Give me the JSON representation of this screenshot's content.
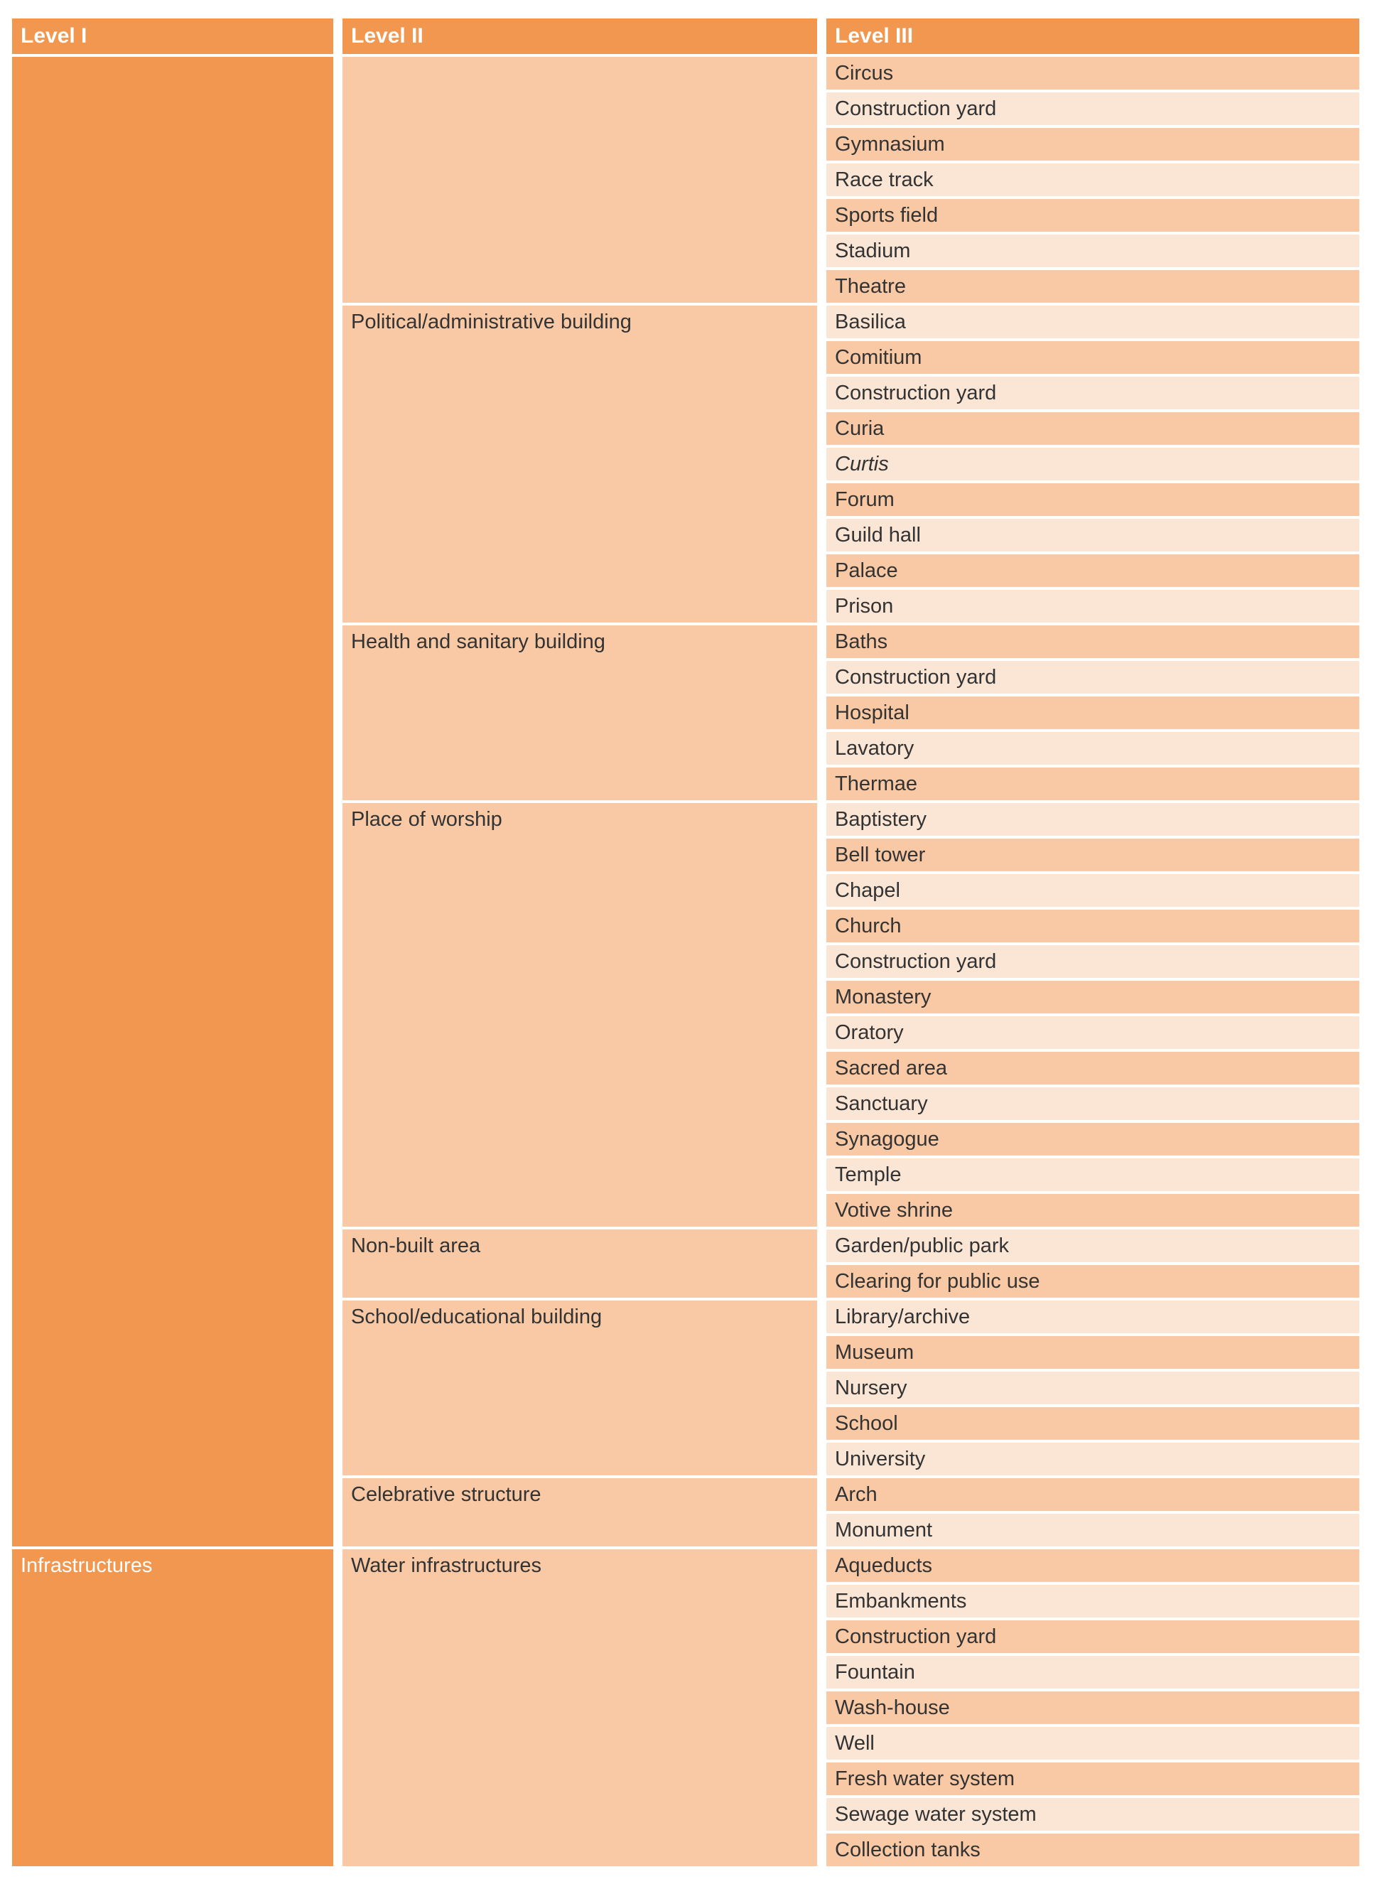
{
  "headers": [
    "Level I",
    "Level II",
    "Level III"
  ],
  "colors": {
    "accent": "#F1974F",
    "tint_medium": "#F8C9A4",
    "tint_light": "#FBE5D4",
    "header_text": "#FFFFFF",
    "body_text": "#333333",
    "background": "#FFFFFF"
  },
  "groups": [
    {
      "level1": "",
      "level2": [
        {
          "label": "",
          "items": [
            "Circus",
            "Construction yard",
            "Gymnasium",
            "Race track",
            "Sports field",
            "Stadium",
            "Theatre"
          ]
        },
        {
          "label": "Political/administrative building",
          "items": [
            "Basilica",
            "Comitium",
            "Construction yard",
            "Curia",
            {
              "text": "Curtis",
              "italic": true
            },
            "Forum",
            "Guild hall",
            "Palace",
            "Prison"
          ]
        },
        {
          "label": "Health and sanitary building",
          "items": [
            "Baths",
            "Construction yard",
            "Hospital",
            "Lavatory",
            "Thermae"
          ]
        },
        {
          "label": "Place of worship",
          "items": [
            "Baptistery",
            "Bell tower",
            "Chapel",
            "Church",
            "Construction yard",
            "Monastery",
            "Oratory",
            "Sacred area",
            "Sanctuary",
            "Synagogue",
            "Temple",
            "Votive shrine"
          ]
        },
        {
          "label": "Non-built area",
          "items": [
            "Garden/public park",
            "Clearing for public use"
          ]
        },
        {
          "label": "School/educational building",
          "items": [
            "Library/archive",
            "Museum",
            "Nursery",
            "School",
            "University"
          ]
        },
        {
          "label": "Celebrative structure",
          "items": [
            "Arch",
            "Monument"
          ]
        }
      ]
    },
    {
      "level1": "Infrastructures",
      "level2": [
        {
          "label": "Water infrastructures",
          "items": [
            "Aqueducts",
            "Embankments",
            "Construction yard",
            "Fountain",
            "Wash-house",
            "Well",
            "Fresh water system",
            "Sewage water system",
            "Collection tanks"
          ]
        }
      ]
    }
  ]
}
